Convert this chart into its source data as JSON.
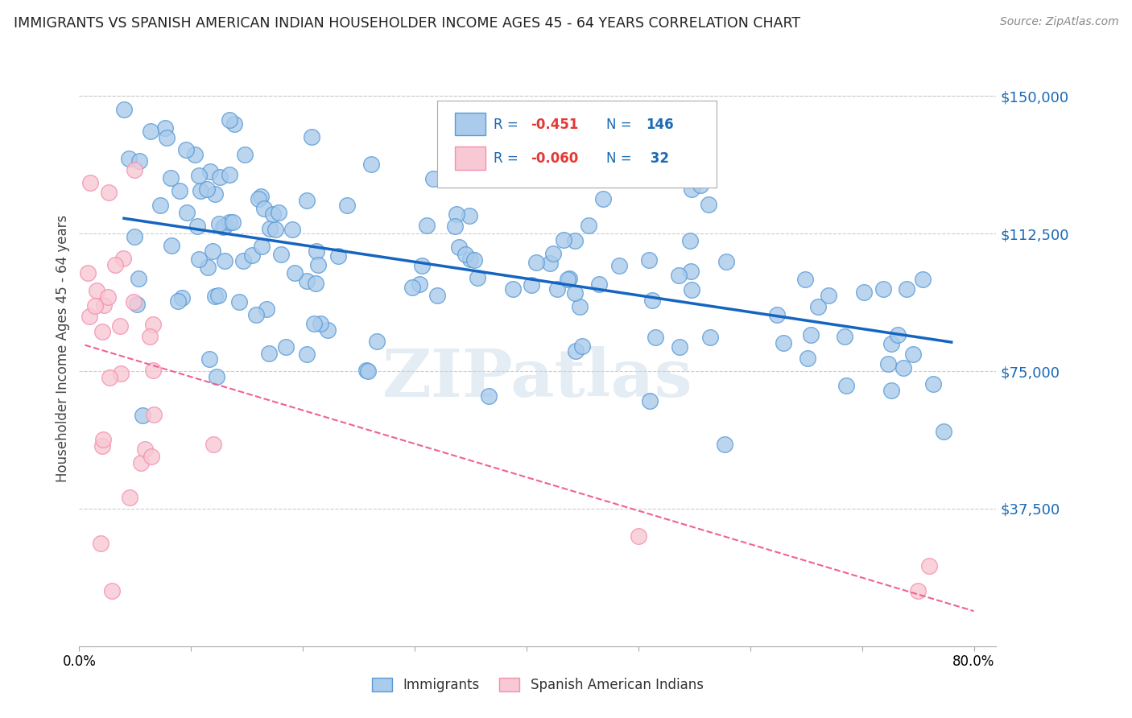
{
  "title": "IMMIGRANTS VS SPANISH AMERICAN INDIAN HOUSEHOLDER INCOME AGES 45 - 64 YEARS CORRELATION CHART",
  "source": "Source: ZipAtlas.com",
  "ylabel": "Householder Income Ages 45 - 64 years",
  "ytick_labels": [
    "$37,500",
    "$75,000",
    "$112,500",
    "$150,000"
  ],
  "ytick_values": [
    37500,
    75000,
    112500,
    150000
  ],
  "ylim": [
    0,
    162500
  ],
  "xlim": [
    0.0,
    0.82
  ],
  "immigrant_color": "#5b9bd5",
  "immigrant_face": "#aacbec",
  "indian_color": "#f48fb1",
  "indian_face": "#f8c8d4",
  "trend_blue": "#1565c0",
  "trend_pink": "#f06292",
  "watermark": "ZIPatlas",
  "r_blue": -0.451,
  "n_blue": 146,
  "r_pink": -0.06,
  "n_pink": 32,
  "legend_r_blue": "-0.451",
  "legend_n_blue": "146",
  "legend_r_pink": "-0.060",
  "legend_n_pink": " 32"
}
